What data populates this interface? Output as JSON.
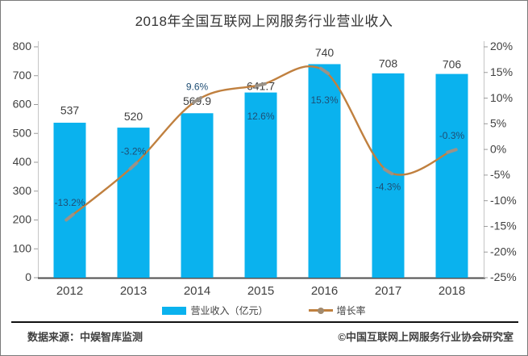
{
  "title": "2018年全国互联网上网服务行业营业收入",
  "legend": {
    "bar_label": "营业收入（亿元）",
    "line_label": "增长率"
  },
  "footer": {
    "source": "数据来源：中娱智库监测",
    "copyright": "©中国互联网上网服务行业协会研究室"
  },
  "colors": {
    "bar": "#0ab2ee",
    "line": "#c0803f",
    "marker": "#9b9287",
    "legend_dot": "#a28a6d",
    "value_label": "#3f3f3f",
    "pct_label": "#1f4e74",
    "axis_text": "#404040",
    "axis_line": "#c6c6c6",
    "tick": "#9a9a9a",
    "baseline": "#4f4f4f"
  },
  "chart_data": {
    "type": "bar+line combo",
    "categories": [
      "2012",
      "2013",
      "2014",
      "2015",
      "2016",
      "2017",
      "2018"
    ],
    "series": [
      {
        "name": "营业收入（亿元）",
        "type": "bar",
        "axis": "left",
        "values": [
          537,
          520,
          569.9,
          641.7,
          740,
          708,
          706
        ],
        "labels": [
          "537",
          "520",
          "569.9",
          "641.7",
          "740",
          "708",
          "706"
        ]
      },
      {
        "name": "增长率",
        "type": "line",
        "axis": "right",
        "values": [
          -13.2,
          -3.2,
          9.6,
          12.6,
          15.3,
          -4.3,
          -0.3
        ],
        "labels": [
          "-13.2%",
          "-3.2%",
          "9.6%",
          "12.6%",
          "15.3%",
          "-4.3%",
          "-0.3%"
        ]
      }
    ],
    "left_axis": {
      "min": 0,
      "max": 800,
      "step": 100,
      "tick_labels": [
        "800",
        "700",
        "600",
        "500",
        "400",
        "300",
        "200",
        "100",
        "0"
      ]
    },
    "right_axis": {
      "min": -25,
      "max": 20,
      "step": 5,
      "tick_labels": [
        "20%",
        "15%",
        "10%",
        "5%",
        "0%",
        "-5%",
        "-10%",
        "-15%",
        "-20%",
        "-25%"
      ]
    },
    "grid": false,
    "legend_position": "bottom",
    "line_style": "smooth",
    "layout_hints": {
      "value_label_dy": [
        -14,
        -13,
        -14,
        -7,
        -13,
        -11,
        -11
      ],
      "pct_label_dy": [
        -17,
        -17,
        -16,
        40,
        37,
        20,
        -18
      ]
    }
  }
}
